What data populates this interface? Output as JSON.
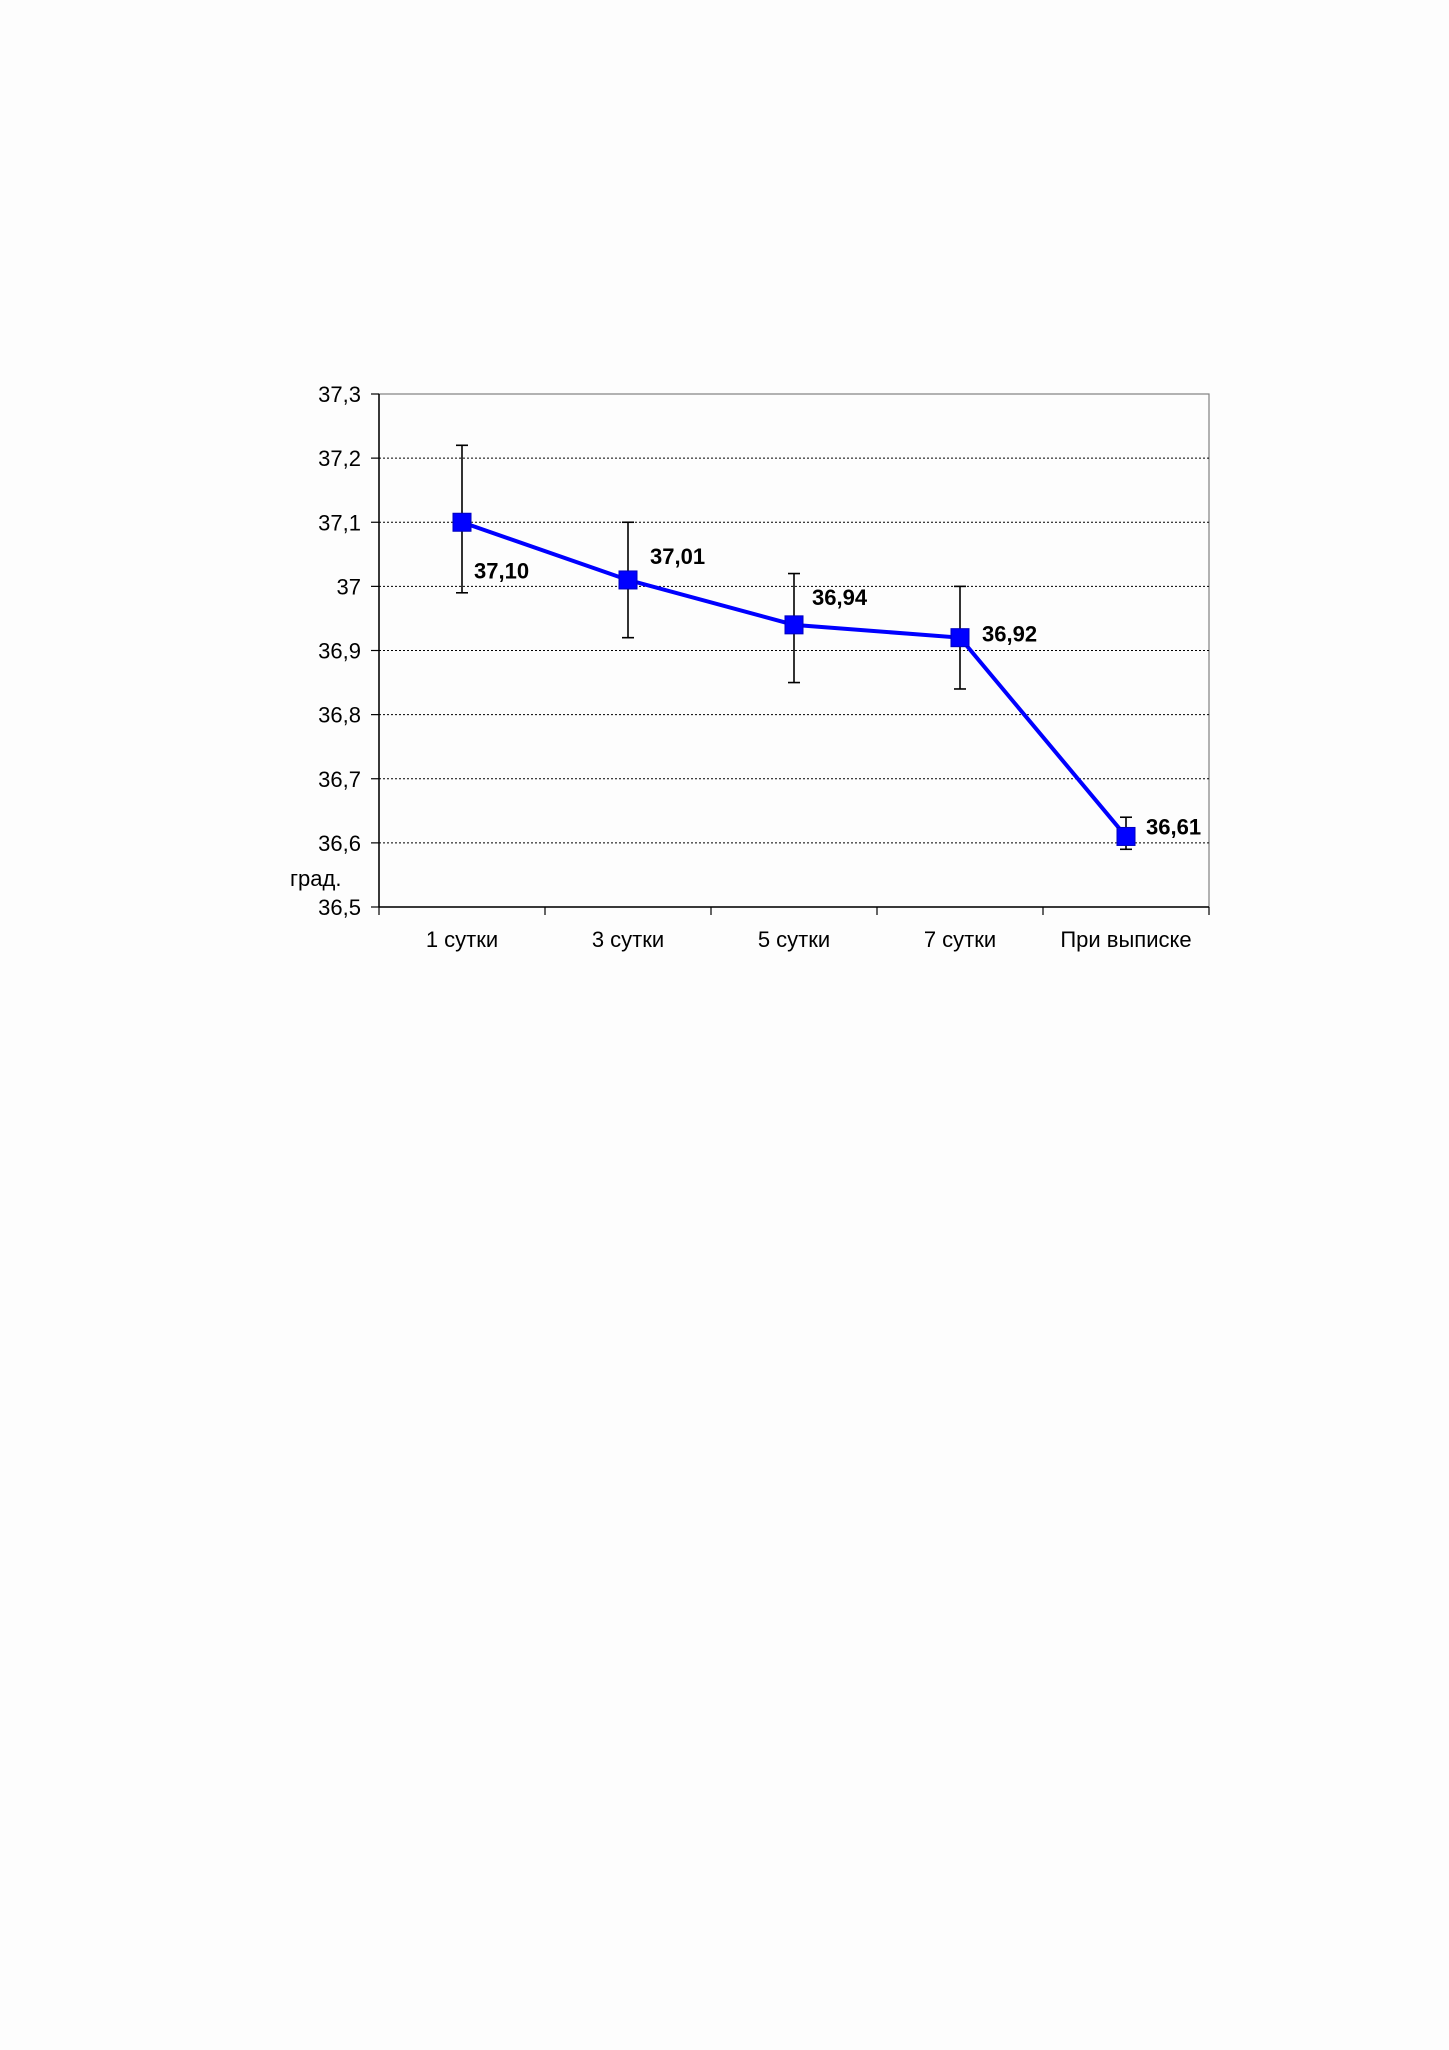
{
  "chart_data": {
    "type": "line",
    "categories": [
      "1 сутки",
      "3 сутки",
      "5 сутки",
      "7 сутки",
      "При выписке"
    ],
    "series": [
      {
        "values": [
          37.1,
          37.01,
          36.94,
          36.92,
          36.61
        ],
        "error_low": [
          36.99,
          36.92,
          36.85,
          36.84,
          36.59
        ],
        "error_high": [
          37.22,
          37.1,
          37.02,
          37.0,
          36.64
        ],
        "color": "#0000ff"
      }
    ],
    "data_labels": [
      "37,10",
      "37,01",
      "36,94",
      "36,92",
      "36,61"
    ],
    "y_ticks": [
      "36,5",
      "36,6",
      "36,7",
      "36,8",
      "36,9",
      "37",
      "37,1",
      "37,2",
      "37,3"
    ],
    "ylim": [
      36.5,
      37.3
    ],
    "ylabel": "град.",
    "xlabel": "",
    "title": "",
    "grid": true,
    "legend": "none",
    "colors": {
      "line": "#0000ff",
      "marker": "#0000ff",
      "errorbar": "#000000",
      "grid": "#000000"
    }
  }
}
